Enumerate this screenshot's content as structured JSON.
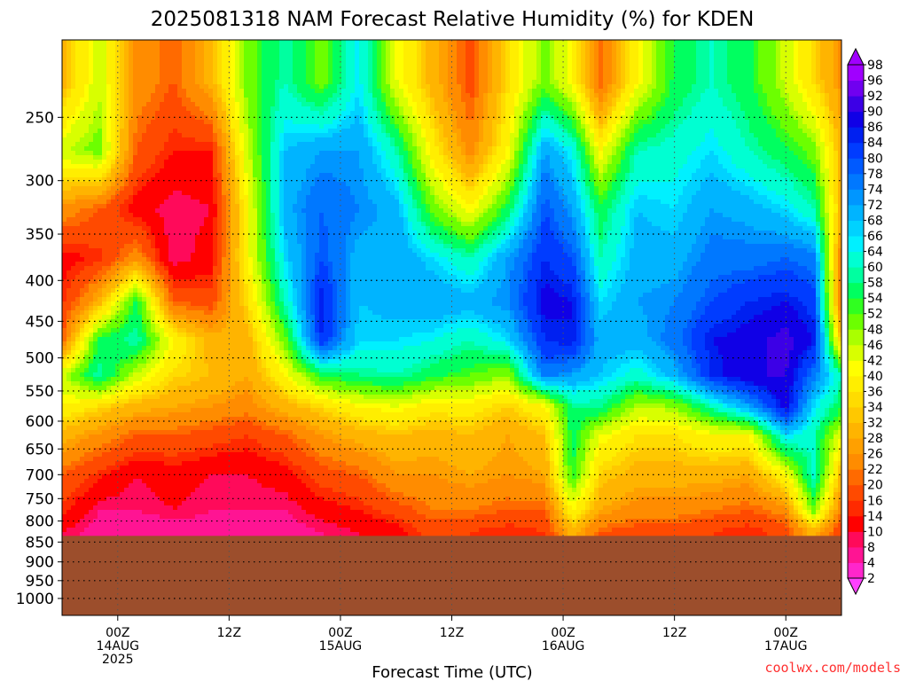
{
  "chart_data": {
    "type": "heatmap",
    "title": "2025081318 NAM Forecast Relative Humidity (%) for KDEN",
    "xlabel": "Forecast Time (UTC)",
    "ylabel": "",
    "x_ticks": [
      {
        "hour": 6,
        "lines": [
          "00Z",
          "14AUG",
          "2025"
        ]
      },
      {
        "hour": 18,
        "lines": [
          "12Z"
        ]
      },
      {
        "hour": 30,
        "lines": [
          "00Z",
          "15AUG"
        ]
      },
      {
        "hour": 42,
        "lines": [
          "12Z"
        ]
      },
      {
        "hour": 54,
        "lines": [
          "00Z",
          "16AUG"
        ]
      },
      {
        "hour": 66,
        "lines": [
          "12Z"
        ]
      },
      {
        "hour": 78,
        "lines": [
          "00Z",
          "17AUG"
        ]
      }
    ],
    "x_range_hours": [
      0,
      84
    ],
    "y_ticks": [
      250,
      300,
      350,
      400,
      450,
      500,
      550,
      600,
      650,
      700,
      750,
      800,
      850,
      900,
      950,
      1000
    ],
    "y_range": [
      200,
      1050
    ],
    "y_scale": "log-pressure",
    "surface_pressure": 835,
    "grid": true,
    "colorbar": {
      "levels": [
        2,
        4,
        8,
        10,
        14,
        16,
        20,
        22,
        26,
        28,
        32,
        34,
        36,
        40,
        42,
        46,
        48,
        52,
        54,
        58,
        60,
        64,
        66,
        68,
        72,
        74,
        78,
        80,
        84,
        86,
        90,
        92,
        96,
        98
      ],
      "colors": [
        "#ff40ff",
        "#ff26cc",
        "#ff1493",
        "#ff0a5a",
        "#ff0000",
        "#ff2a00",
        "#ff4a00",
        "#ff6a00",
        "#ff8c00",
        "#ffa000",
        "#ffb400",
        "#ffc800",
        "#ffdc00",
        "#ffee00",
        "#ffff00",
        "#d8ff00",
        "#aaff00",
        "#6cff00",
        "#30ff20",
        "#00ff60",
        "#00ffa0",
        "#00ffd2",
        "#00f0ff",
        "#00d2ff",
        "#00b4ff",
        "#0096ff",
        "#0078ff",
        "#005aff",
        "#003cff",
        "#0020f0",
        "#1000e6",
        "#3c00e6",
        "#7000f0",
        "#a000ff"
      ]
    },
    "ground_color": "#9c4e2c",
    "rh_columns": [
      {
        "hour": 0,
        "values": [
          30,
          45,
          25,
          12,
          15,
          20,
          45,
          40,
          30,
          20,
          15,
          10
        ]
      },
      {
        "hour": 4,
        "values": [
          45,
          50,
          20,
          15,
          30,
          55,
          60,
          35,
          25,
          15,
          8,
          6
        ]
      },
      {
        "hour": 8,
        "values": [
          25,
          20,
          12,
          25,
          55,
          60,
          45,
          30,
          20,
          10,
          8,
          4
        ]
      },
      {
        "hour": 12,
        "values": [
          20,
          14,
          8,
          8,
          20,
          40,
          35,
          28,
          20,
          12,
          10,
          6
        ]
      },
      {
        "hour": 16,
        "values": [
          30,
          14,
          10,
          12,
          18,
          30,
          32,
          26,
          18,
          10,
          8,
          6
        ]
      },
      {
        "hour": 20,
        "values": [
          50,
          45,
          40,
          40,
          35,
          30,
          28,
          24,
          16,
          10,
          8,
          6
        ]
      },
      {
        "hour": 24,
        "values": [
          60,
          68,
          70,
          66,
          60,
          50,
          40,
          30,
          20,
          12,
          8,
          6
        ]
      },
      {
        "hour": 28,
        "values": [
          50,
          72,
          78,
          80,
          86,
          84,
          55,
          35,
          26,
          18,
          12,
          8
        ]
      },
      {
        "hour": 32,
        "values": [
          65,
          72,
          74,
          70,
          68,
          66,
          58,
          40,
          30,
          20,
          14,
          10
        ]
      },
      {
        "hour": 36,
        "values": [
          42,
          60,
          70,
          72,
          70,
          66,
          60,
          42,
          32,
          26,
          18,
          12
        ]
      },
      {
        "hour": 40,
        "values": [
          30,
          38,
          50,
          66,
          72,
          64,
          55,
          38,
          30,
          26,
          22,
          18
        ]
      },
      {
        "hour": 44,
        "values": [
          18,
          24,
          40,
          60,
          70,
          60,
          52,
          38,
          32,
          28,
          22,
          16
        ]
      },
      {
        "hour": 48,
        "values": [
          35,
          40,
          55,
          72,
          74,
          66,
          48,
          34,
          28,
          26,
          20,
          14
        ]
      },
      {
        "hour": 52,
        "values": [
          50,
          72,
          80,
          84,
          88,
          84,
          76,
          40,
          32,
          28,
          20,
          16
        ]
      },
      {
        "hour": 55,
        "values": [
          40,
          64,
          72,
          80,
          86,
          86,
          72,
          58,
          56,
          54,
          40,
          30
        ]
      },
      {
        "hour": 58,
        "values": [
          20,
          40,
          55,
          60,
          66,
          70,
          68,
          58,
          42,
          34,
          28,
          20
        ]
      },
      {
        "hour": 62,
        "values": [
          40,
          60,
          68,
          70,
          72,
          70,
          62,
          46,
          36,
          30,
          24,
          18
        ]
      },
      {
        "hour": 66,
        "values": [
          55,
          62,
          66,
          70,
          74,
          76,
          70,
          48,
          36,
          30,
          24,
          18
        ]
      },
      {
        "hour": 70,
        "values": [
          60,
          66,
          72,
          76,
          80,
          86,
          84,
          60,
          40,
          30,
          22,
          16
        ]
      },
      {
        "hour": 74,
        "values": [
          55,
          60,
          70,
          76,
          84,
          88,
          90,
          72,
          40,
          28,
          20,
          14
        ]
      },
      {
        "hour": 78,
        "values": [
          45,
          55,
          66,
          78,
          86,
          92,
          90,
          88,
          66,
          40,
          24,
          18
        ]
      },
      {
        "hour": 81,
        "values": [
          35,
          50,
          60,
          76,
          82,
          86,
          76,
          66,
          60,
          62,
          50,
          30
        ]
      },
      {
        "hour": 84,
        "values": [
          25,
          30,
          30,
          22,
          20,
          32,
          60,
          55,
          42,
          30,
          22,
          16
        ]
      }
    ],
    "rh_pressure_levels": [
      225,
      275,
      325,
      375,
      425,
      475,
      525,
      575,
      625,
      700,
      775,
      825
    ]
  },
  "credit": "coolwx.com/models"
}
